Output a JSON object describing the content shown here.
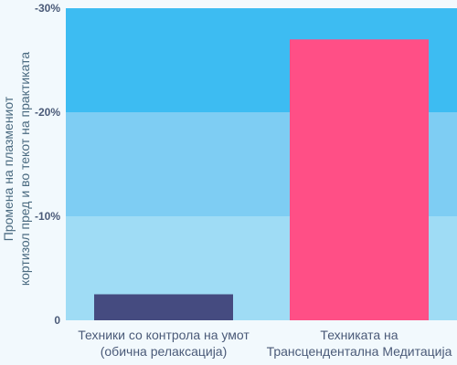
{
  "chart_data": {
    "type": "bar",
    "categories": [
      [
        "Техники со контрола на умот",
        "(обична релаксација)"
      ],
      [
        "Техниката на",
        "Трансцендентална Медитација"
      ]
    ],
    "values": [
      -2.5,
      -27
    ],
    "bar_colors": [
      "#454b80",
      "#ff4f86"
    ],
    "band_colors": [
      "#9fdcf5",
      "#7ecdf3",
      "#3dbcf2"
    ],
    "xlabel": "",
    "ylabel": [
      "Промена на плазмениот",
      "кортизол пред и во текот на практиката"
    ],
    "ylim": [
      0,
      -30
    ],
    "y_ticks": [
      0,
      -10,
      -20,
      -30
    ],
    "y_tick_labels": [
      "0",
      "-10%",
      "-20%",
      "-30%"
    ],
    "grid": false
  }
}
